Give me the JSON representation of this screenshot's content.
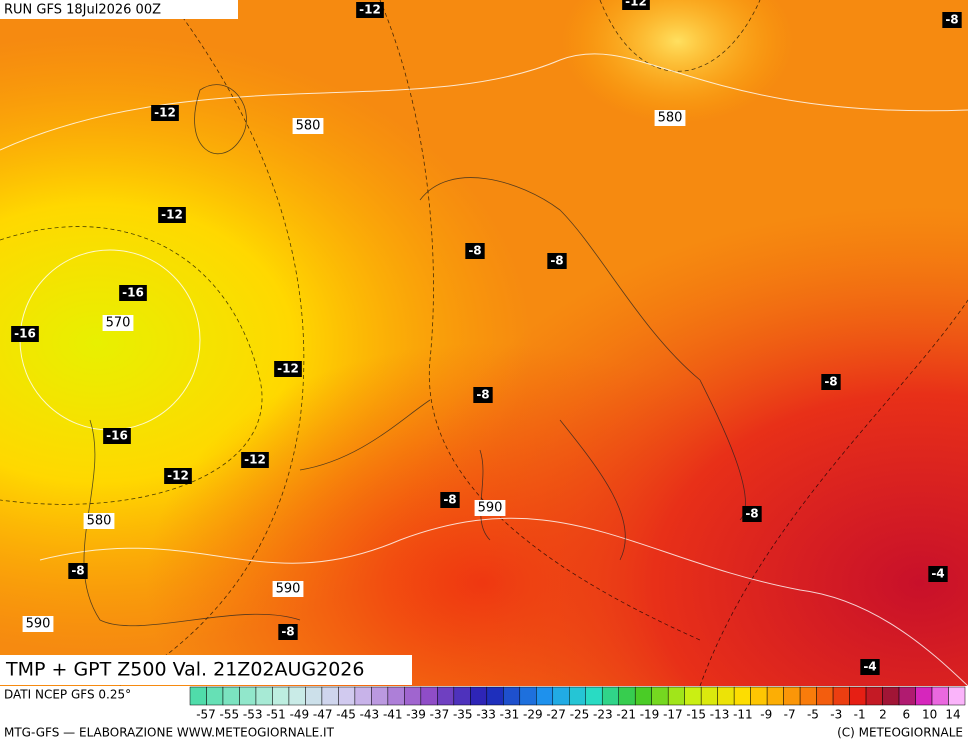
{
  "run_label": "RUN GFS 18Jul2026 00Z",
  "map_title": "TMP + GPT Z500 Val. 21Z02AUG2026",
  "source": "DATI NCEP GFS 0.25°",
  "footer_left": "MTG-GFS — ELABORAZIONE WWW.METEOGIORNALE.IT",
  "footer_right": "(C) METEOGIORNALE",
  "temp_labels": [
    "-12",
    "-12",
    "-8",
    "-12",
    "-12",
    "-16",
    "-16",
    "-12",
    "-16",
    "-12",
    "-12",
    "-8",
    "-8",
    "-8",
    "-8",
    "-8",
    "-8",
    "-8",
    "-8",
    "-4",
    "-4"
  ],
  "gpt_labels": [
    "580",
    "580",
    "570",
    "590",
    "580",
    "590",
    "590"
  ],
  "colorbar_labels": [
    -57,
    -55,
    -53,
    -51,
    -49,
    -47,
    -45,
    -43,
    -41,
    -39,
    -37,
    -35,
    -33,
    -31,
    -29,
    -27,
    -25,
    -23,
    -21,
    -19,
    -17,
    -15,
    -13,
    -11,
    -9,
    -7,
    -5,
    -3,
    -1,
    2,
    6,
    10,
    14
  ]
}
